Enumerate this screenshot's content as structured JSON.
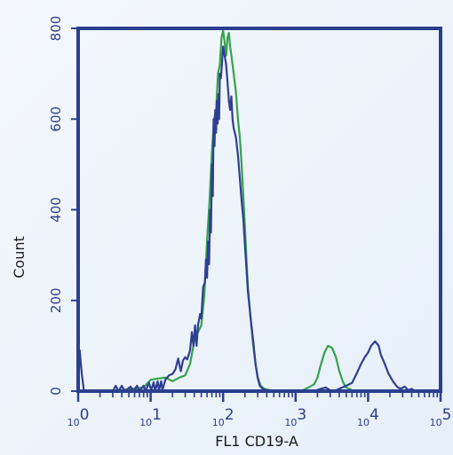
{
  "chart_data": {
    "type": "line",
    "title": "",
    "xlabel": "FL1 CD19-A",
    "ylabel": "Count",
    "xscale": "log",
    "xlim": [
      1,
      100000
    ],
    "ylim": [
      0,
      800
    ],
    "grid": false,
    "x_tick_base": "10",
    "x_tick_exponents": [
      "0",
      "1",
      "2",
      "3",
      "4",
      "5"
    ],
    "y_ticks": [
      "0",
      "200",
      "400",
      "600",
      "800"
    ],
    "colors": {
      "axis": "#2b3f8f",
      "series_blue": "#2e3f93",
      "series_green": "#35a24b",
      "tick_text": "#2b3f8f"
    },
    "series": [
      {
        "color": "#35a24b",
        "points": [
          [
            1,
            0
          ],
          [
            3,
            0
          ],
          [
            8,
            8
          ],
          [
            10,
            25
          ],
          [
            13,
            28
          ],
          [
            16,
            30
          ],
          [
            20,
            22
          ],
          [
            25,
            30
          ],
          [
            30,
            35
          ],
          [
            35,
            60
          ],
          [
            40,
            110
          ],
          [
            45,
            130
          ],
          [
            50,
            145
          ],
          [
            55,
            210
          ],
          [
            60,
            330
          ],
          [
            65,
            420
          ],
          [
            70,
            530
          ],
          [
            75,
            600
          ],
          [
            80,
            620
          ],
          [
            85,
            700
          ],
          [
            90,
            720
          ],
          [
            95,
            780
          ],
          [
            100,
            795
          ],
          [
            105,
            770
          ],
          [
            110,
            740
          ],
          [
            115,
            780
          ],
          [
            120,
            790
          ],
          [
            125,
            760
          ],
          [
            130,
            740
          ],
          [
            140,
            700
          ],
          [
            150,
            660
          ],
          [
            160,
            600
          ],
          [
            170,
            560
          ],
          [
            180,
            500
          ],
          [
            190,
            430
          ],
          [
            200,
            360
          ],
          [
            210,
            290
          ],
          [
            220,
            230
          ],
          [
            240,
            160
          ],
          [
            260,
            100
          ],
          [
            280,
            60
          ],
          [
            300,
            30
          ],
          [
            330,
            12
          ],
          [
            370,
            5
          ],
          [
            450,
            2
          ],
          [
            600,
            0
          ],
          [
            900,
            0
          ],
          [
            1200,
            0
          ],
          [
            1500,
            8
          ],
          [
            1800,
            15
          ],
          [
            2000,
            30
          ],
          [
            2200,
            55
          ],
          [
            2500,
            85
          ],
          [
            2800,
            100
          ],
          [
            3200,
            95
          ],
          [
            3600,
            75
          ],
          [
            4000,
            45
          ],
          [
            4500,
            20
          ],
          [
            5000,
            8
          ],
          [
            6000,
            2
          ],
          [
            7000,
            0
          ],
          [
            100000,
            0
          ]
        ]
      },
      {
        "color": "#2e3f93",
        "points": [
          [
            1,
            0
          ],
          [
            1.05,
            90
          ],
          [
            1.12,
            40
          ],
          [
            1.2,
            0
          ],
          [
            3,
            0
          ],
          [
            3.3,
            12
          ],
          [
            3.6,
            0
          ],
          [
            4,
            12
          ],
          [
            4.4,
            0
          ],
          [
            5.3,
            10
          ],
          [
            5.7,
            0
          ],
          [
            6.5,
            12
          ],
          [
            6.9,
            0
          ],
          [
            8,
            12
          ],
          [
            8.5,
            0
          ],
          [
            9.5,
            18
          ],
          [
            10.2,
            2
          ],
          [
            11,
            20
          ],
          [
            11.5,
            0
          ],
          [
            12.5,
            22
          ],
          [
            13,
            2
          ],
          [
            14,
            22
          ],
          [
            14.5,
            2
          ],
          [
            16,
            26
          ],
          [
            17,
            30
          ],
          [
            18,
            35
          ],
          [
            20,
            38
          ],
          [
            22,
            48
          ],
          [
            24,
            72
          ],
          [
            26,
            44
          ],
          [
            28,
            68
          ],
          [
            30,
            75
          ],
          [
            32,
            70
          ],
          [
            35,
            90
          ],
          [
            37,
            130
          ],
          [
            39,
            100
          ],
          [
            41,
            145
          ],
          [
            43,
            100
          ],
          [
            45,
            145
          ],
          [
            48,
            170
          ],
          [
            50,
            160
          ],
          [
            53,
            230
          ],
          [
            56,
            240
          ],
          [
            58,
            290
          ],
          [
            60,
            250
          ],
          [
            62,
            330
          ],
          [
            64,
            280
          ],
          [
            66,
            400
          ],
          [
            68,
            350
          ],
          [
            70,
            500
          ],
          [
            72,
            430
          ],
          [
            74,
            600
          ],
          [
            76,
            540
          ],
          [
            78,
            620
          ],
          [
            80,
            570
          ],
          [
            82,
            640
          ],
          [
            84,
            590
          ],
          [
            86,
            655
          ],
          [
            88,
            600
          ],
          [
            90,
            700
          ],
          [
            93,
            690
          ],
          [
            96,
            720
          ],
          [
            100,
            760
          ],
          [
            105,
            740
          ],
          [
            110,
            720
          ],
          [
            115,
            680
          ],
          [
            120,
            640
          ],
          [
            125,
            620
          ],
          [
            130,
            650
          ],
          [
            135,
            600
          ],
          [
            140,
            580
          ],
          [
            150,
            560
          ],
          [
            160,
            520
          ],
          [
            170,
            470
          ],
          [
            180,
            420
          ],
          [
            190,
            380
          ],
          [
            200,
            320
          ],
          [
            210,
            270
          ],
          [
            220,
            220
          ],
          [
            240,
            160
          ],
          [
            260,
            110
          ],
          [
            280,
            60
          ],
          [
            300,
            30
          ],
          [
            320,
            12
          ],
          [
            350,
            5
          ],
          [
            400,
            2
          ],
          [
            500,
            0
          ],
          [
            900,
            0
          ],
          [
            1100,
            2
          ],
          [
            1400,
            0
          ],
          [
            1800,
            0
          ],
          [
            2200,
            5
          ],
          [
            2600,
            8
          ],
          [
            3000,
            2
          ],
          [
            3400,
            0
          ],
          [
            4000,
            5
          ],
          [
            5000,
            12
          ],
          [
            6000,
            18
          ],
          [
            7000,
            40
          ],
          [
            8000,
            60
          ],
          [
            9000,
            75
          ],
          [
            10000,
            85
          ],
          [
            11000,
            100
          ],
          [
            12500,
            110
          ],
          [
            14000,
            100
          ],
          [
            15000,
            80
          ],
          [
            17000,
            60
          ],
          [
            19000,
            40
          ],
          [
            22000,
            22
          ],
          [
            25000,
            10
          ],
          [
            28000,
            5
          ],
          [
            32000,
            10
          ],
          [
            36000,
            2
          ],
          [
            40000,
            5
          ],
          [
            45000,
            0
          ],
          [
            100000,
            0
          ]
        ]
      }
    ]
  }
}
